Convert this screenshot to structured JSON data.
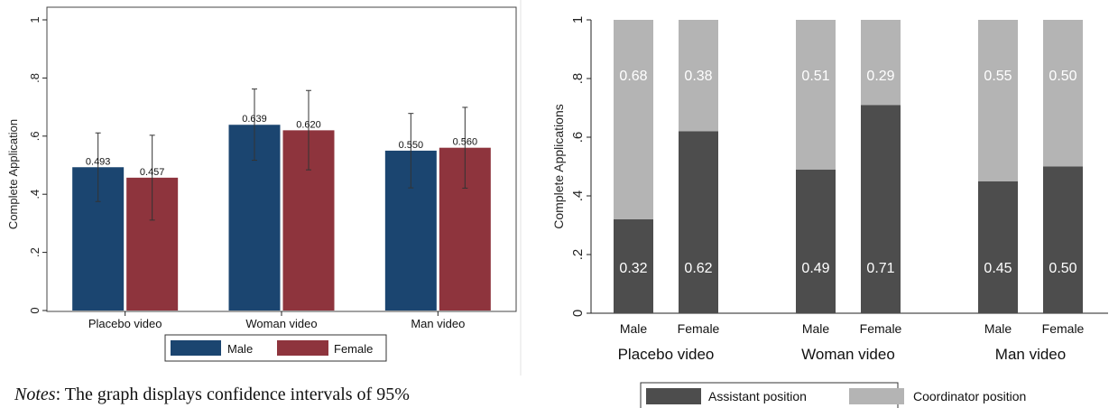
{
  "notes": {
    "prefix": "Notes",
    "text": ": The graph displays confidence intervals of 95%"
  },
  "colors": {
    "male": "#1b4570",
    "female": "#8e343d",
    "assistant": "#4d4d4d",
    "coordinator": "#b4b4b4",
    "errorbar": "#333333"
  },
  "chart_data": [
    {
      "type": "bar",
      "title": "",
      "xlabel": "",
      "ylabel": "Complete Application",
      "ylim": [
        0,
        1
      ],
      "yticks": [
        0,
        0.2,
        0.4,
        0.6,
        0.8,
        1
      ],
      "ytick_labels": [
        "0",
        ".2",
        ".4",
        ".6",
        ".8",
        "1"
      ],
      "categories": [
        "Placebo video",
        "Woman video",
        "Man video"
      ],
      "series": [
        {
          "name": "Male",
          "values": [
            0.493,
            0.639,
            0.55
          ],
          "labels": [
            "0.493",
            "0.639",
            "0.550"
          ],
          "ci_low": [
            0.375,
            0.517,
            0.422
          ],
          "ci_high": [
            0.611,
            0.762,
            0.678
          ]
        },
        {
          "name": "Female",
          "values": [
            0.457,
            0.62,
            0.56
          ],
          "labels": [
            "0.457",
            "0.620",
            "0.560"
          ],
          "ci_low": [
            0.311,
            0.484,
            0.421
          ],
          "ci_high": [
            0.603,
            0.757,
            0.699
          ]
        }
      ],
      "legend_position": "bottom",
      "grid": false
    },
    {
      "type": "bar",
      "stacked": true,
      "title": "",
      "xlabel": "",
      "ylabel": "Complete Applications",
      "ylim": [
        0,
        1
      ],
      "yticks": [
        0,
        0.2,
        0.4,
        0.6,
        0.8,
        1
      ],
      "ytick_labels": [
        "0",
        ".2",
        ".4",
        ".6",
        ".8",
        "1"
      ],
      "groups": [
        "Placebo video",
        "Woman video",
        "Man video"
      ],
      "subcategories": [
        "Male",
        "Female"
      ],
      "series": [
        {
          "name": "Assistant position",
          "values": [
            0.32,
            0.62,
            0.49,
            0.71,
            0.45,
            0.5
          ],
          "labels": [
            "0.32",
            "0.62",
            "0.49",
            "0.71",
            "0.45",
            "0.50"
          ]
        },
        {
          "name": "Coordinator position",
          "values": [
            0.68,
            0.38,
            0.51,
            0.29,
            0.55,
            0.5
          ],
          "labels": [
            "0.68",
            "0.38",
            "0.51",
            "0.29",
            "0.55",
            "0.50"
          ]
        }
      ],
      "legend_position": "bottom",
      "grid": false
    }
  ]
}
